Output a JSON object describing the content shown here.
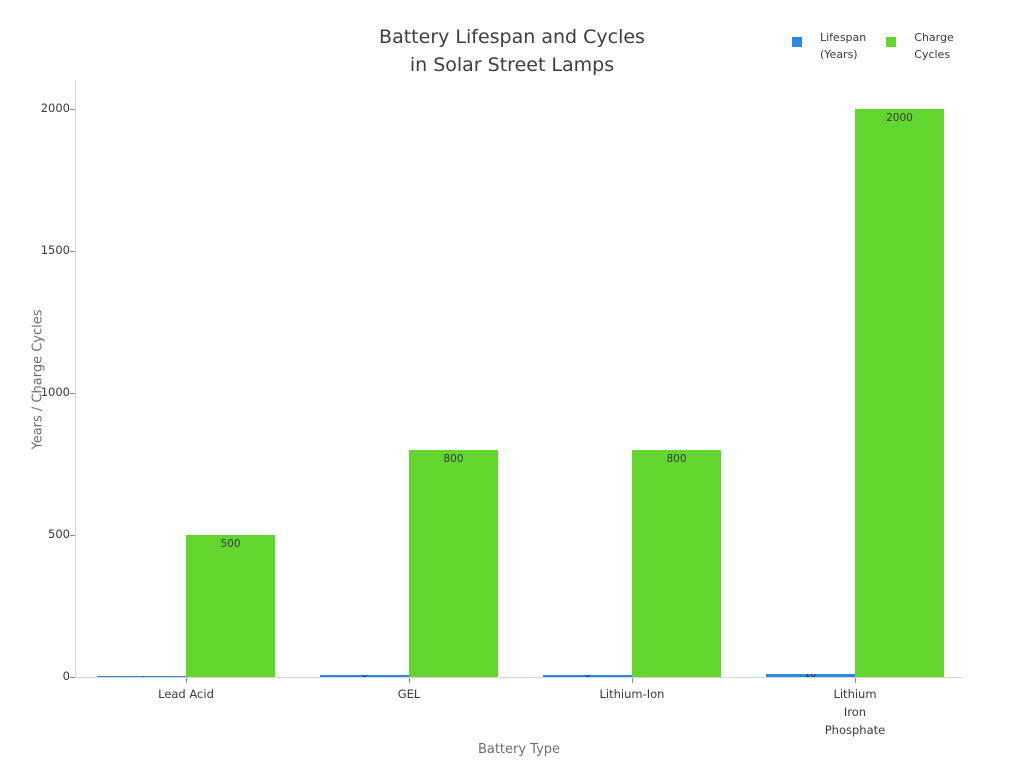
{
  "title": {
    "line1": "Battery Lifespan and Cycles",
    "line2": "in Solar Street Lamps"
  },
  "chart_data": {
    "type": "bar",
    "title": "Battery Lifespan and Cycles in Solar Street Lamps",
    "categories": [
      "Lead Acid",
      "GEL",
      "Lithium-Ion",
      "Lithium Iron Phosphate"
    ],
    "x_tick_lines": [
      [
        "Lead Acid"
      ],
      [
        "GEL"
      ],
      [
        "Lithium-Ion"
      ],
      [
        "Lithium",
        "Iron",
        "Phosphate"
      ]
    ],
    "series": [
      {
        "name": "Lifespan (Years)",
        "name_lines": [
          "Lifespan",
          "(Years)"
        ],
        "color": "#2e87e0",
        "values": [
          5,
          8,
          8,
          10
        ],
        "labels_clipped": true
      },
      {
        "name": "Charge Cycles",
        "name_lines": [
          "Charge",
          "Cycles"
        ],
        "color": "#62d62e",
        "values": [
          500,
          800,
          800,
          2000
        ],
        "bar_labels": [
          "500",
          "800",
          "800",
          "2000"
        ]
      }
    ],
    "xlabel": "Battery Type",
    "ylabel": "Years / Charge Cycles",
    "ylim": [
      0,
      2000
    ],
    "yticks": [
      0,
      500,
      1000,
      1500,
      2000
    ],
    "ytick_labels": [
      "0",
      "500",
      "1000",
      "1500",
      "2000"
    ],
    "grid": false,
    "legend_position": "top-right",
    "bar_label_color": "#3a3a3a",
    "axis_line_color": "#d6d6d6"
  }
}
